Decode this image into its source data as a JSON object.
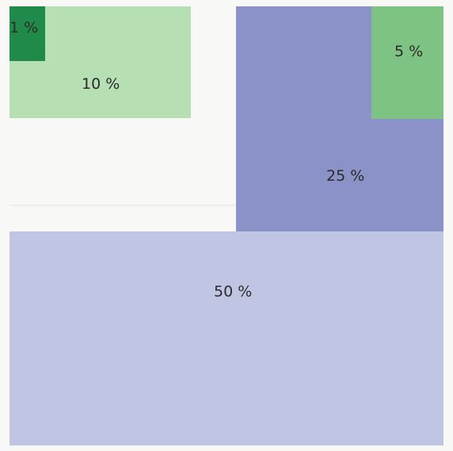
{
  "blocks": [
    {
      "id": "50",
      "label": "50 %",
      "color": "#c0c5e4"
    },
    {
      "id": "25",
      "label": "25 %",
      "color": "#8a92c8"
    },
    {
      "id": "10",
      "label": "10 %",
      "color": "#b6dfb4"
    },
    {
      "id": "5",
      "label": "5 %",
      "color": "#7ec383"
    },
    {
      "id": "1",
      "label": "1 %",
      "color": "#1f8a4a"
    }
  ]
}
